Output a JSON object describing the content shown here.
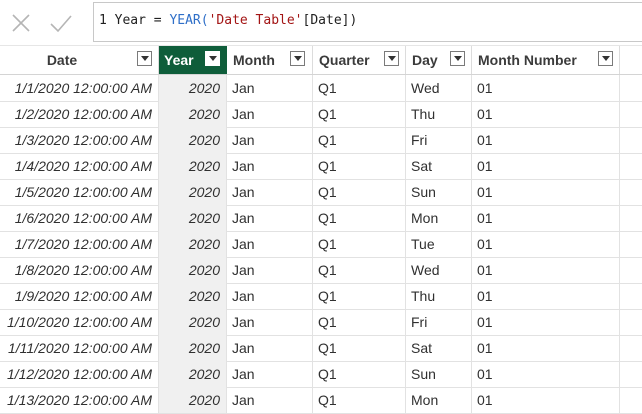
{
  "formula": {
    "line_number": "1",
    "measure_name": "Year",
    "equals": "=",
    "function_name": "YEAR(",
    "table_ref": "'Date Table'",
    "column_ref": "[Date])"
  },
  "icons": {
    "cancel": "close-icon",
    "commit": "check-icon",
    "filter": "chevron-down-icon"
  },
  "colors": {
    "selected_header": "#0e5d3a",
    "function_token": "#2f6fc8",
    "string_token": "#a31515"
  },
  "table": {
    "selected_column": "Year",
    "columns": [
      "Date",
      "Year",
      "Month",
      "Quarter",
      "Day",
      "Month Number"
    ],
    "rows": [
      {
        "date": "1/1/2020 12:00:00 AM",
        "year": "2020",
        "month": "Jan",
        "quarter": "Q1",
        "day": "Wed",
        "month_number": "01"
      },
      {
        "date": "1/2/2020 12:00:00 AM",
        "year": "2020",
        "month": "Jan",
        "quarter": "Q1",
        "day": "Thu",
        "month_number": "01"
      },
      {
        "date": "1/3/2020 12:00:00 AM",
        "year": "2020",
        "month": "Jan",
        "quarter": "Q1",
        "day": "Fri",
        "month_number": "01"
      },
      {
        "date": "1/4/2020 12:00:00 AM",
        "year": "2020",
        "month": "Jan",
        "quarter": "Q1",
        "day": "Sat",
        "month_number": "01"
      },
      {
        "date": "1/5/2020 12:00:00 AM",
        "year": "2020",
        "month": "Jan",
        "quarter": "Q1",
        "day": "Sun",
        "month_number": "01"
      },
      {
        "date": "1/6/2020 12:00:00 AM",
        "year": "2020",
        "month": "Jan",
        "quarter": "Q1",
        "day": "Mon",
        "month_number": "01"
      },
      {
        "date": "1/7/2020 12:00:00 AM",
        "year": "2020",
        "month": "Jan",
        "quarter": "Q1",
        "day": "Tue",
        "month_number": "01"
      },
      {
        "date": "1/8/2020 12:00:00 AM",
        "year": "2020",
        "month": "Jan",
        "quarter": "Q1",
        "day": "Wed",
        "month_number": "01"
      },
      {
        "date": "1/9/2020 12:00:00 AM",
        "year": "2020",
        "month": "Jan",
        "quarter": "Q1",
        "day": "Thu",
        "month_number": "01"
      },
      {
        "date": "1/10/2020 12:00:00 AM",
        "year": "2020",
        "month": "Jan",
        "quarter": "Q1",
        "day": "Fri",
        "month_number": "01"
      },
      {
        "date": "1/11/2020 12:00:00 AM",
        "year": "2020",
        "month": "Jan",
        "quarter": "Q1",
        "day": "Sat",
        "month_number": "01"
      },
      {
        "date": "1/12/2020 12:00:00 AM",
        "year": "2020",
        "month": "Jan",
        "quarter": "Q1",
        "day": "Sun",
        "month_number": "01"
      },
      {
        "date": "1/13/2020 12:00:00 AM",
        "year": "2020",
        "month": "Jan",
        "quarter": "Q1",
        "day": "Mon",
        "month_number": "01"
      }
    ]
  }
}
